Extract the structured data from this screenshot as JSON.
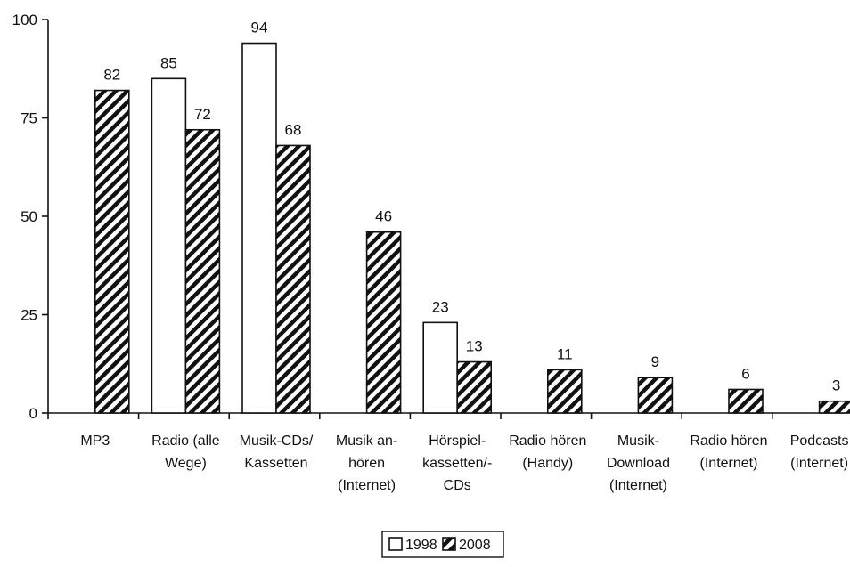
{
  "chart_data": {
    "type": "bar",
    "title": "",
    "xlabel": "",
    "ylabel": "",
    "ylim": [
      0,
      100
    ],
    "yticks": [
      0,
      25,
      50,
      75,
      100
    ],
    "grid": false,
    "legend_position": "bottom-center",
    "categories": [
      [
        "MP3"
      ],
      [
        "Radio (alle",
        "Wege)"
      ],
      [
        "Musik-CDs/",
        "Kassetten"
      ],
      [
        "Musik an-",
        "hören",
        "(Internet)"
      ],
      [
        "Hörspiel-",
        "kassetten/-",
        "CDs"
      ],
      [
        "Radio hören",
        "(Handy)"
      ],
      [
        "Musik-",
        "Download",
        "(Internet)"
      ],
      [
        "Radio hören",
        "(Internet)"
      ],
      [
        "Podcasts",
        "(Internet)"
      ]
    ],
    "series": [
      {
        "name": "1998",
        "fill": "white",
        "values": [
          null,
          85,
          94,
          null,
          23,
          null,
          null,
          null,
          null
        ]
      },
      {
        "name": "2008",
        "fill": "hatched",
        "values": [
          82,
          72,
          68,
          46,
          13,
          11,
          9,
          6,
          3
        ]
      }
    ],
    "colors": {
      "stroke": "#111111",
      "background": "#ffffff",
      "series_1998": "#ffffff",
      "series_2008_hatch": "#111111"
    }
  }
}
